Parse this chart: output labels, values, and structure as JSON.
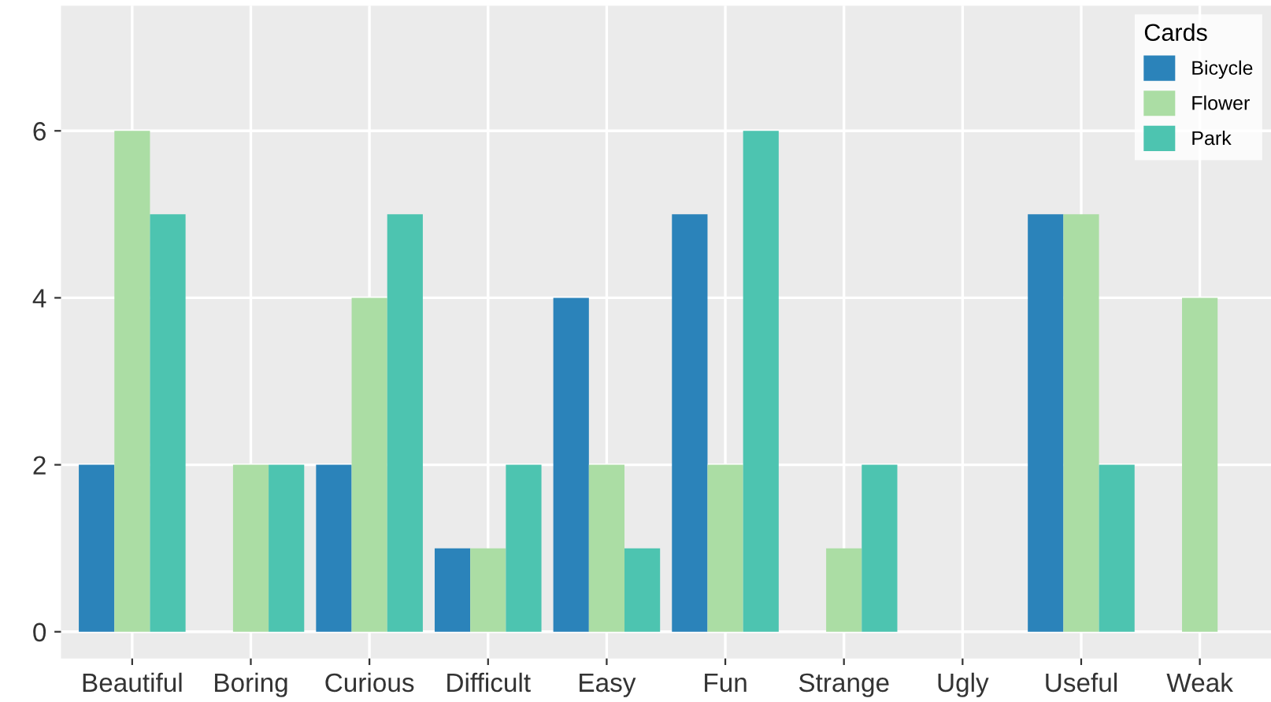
{
  "chart_data": {
    "type": "bar",
    "legend_title": "Cards",
    "categories": [
      "Beautiful",
      "Boring",
      "Curious",
      "Difficult",
      "Easy",
      "Fun",
      "Strange",
      "Ugly",
      "Useful",
      "Weak"
    ],
    "series": [
      {
        "name": "Bicycle",
        "color": "#2b83ba",
        "values": [
          2,
          0,
          2,
          1,
          4,
          5,
          0,
          0,
          5,
          0
        ]
      },
      {
        "name": "Flower",
        "color": "#abdda4",
        "values": [
          6,
          2,
          4,
          1,
          2,
          2,
          1,
          0,
          5,
          4
        ]
      },
      {
        "name": "Park",
        "color": "#4dc4b0",
        "values": [
          5,
          2,
          5,
          2,
          1,
          6,
          2,
          0,
          2,
          0
        ]
      }
    ],
    "ylim": [
      -0.32,
      7.5
    ],
    "yticks": [
      0,
      2,
      4,
      6
    ],
    "grid": true,
    "legend": "top right"
  }
}
